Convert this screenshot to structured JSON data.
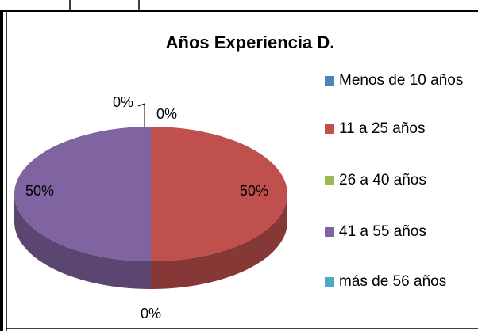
{
  "chart_data": {
    "type": "pie",
    "title": "Años Experiencia D.",
    "categories": [
      "Menos de 10 años",
      "11 a 25 años",
      "26 a 40 años",
      "41 a 55 años",
      "más de 56 años"
    ],
    "values": [
      0,
      50,
      0,
      50,
      0
    ],
    "value_labels": [
      "0%",
      "50%",
      "0%",
      "50%",
      "0%"
    ],
    "colors": [
      "#4f81bd",
      "#c0504d",
      "#9bbb59",
      "#8064a2",
      "#4bacc6"
    ],
    "legend": "right"
  }
}
